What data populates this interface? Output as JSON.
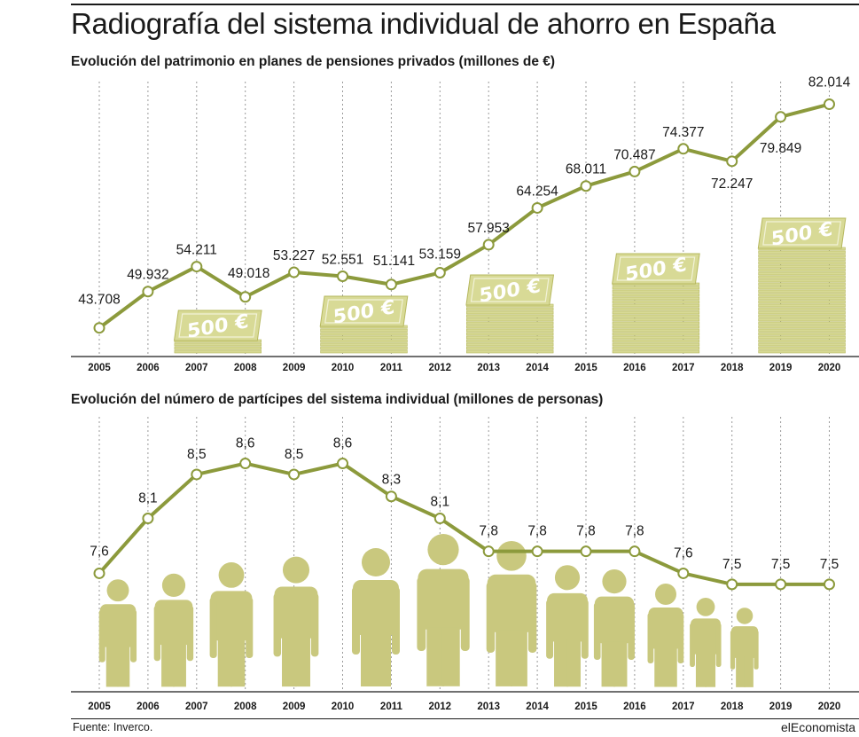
{
  "header": {
    "title": "Radiografía del sistema individual de ahorro en España"
  },
  "footer": {
    "source": "Fuente: Inverco.",
    "brand": "elEconomista"
  },
  "colors": {
    "line": "#8c9a3c",
    "bill": "#d8da96",
    "bill_stroke": "#b6b85e",
    "bill_text": "#ffffff",
    "person": "#c9c87e",
    "gridline": "#9a9a9a",
    "axis": "#1a1a1a"
  },
  "chart_data": [
    {
      "type": "line",
      "title": "Evolución del patrimonio en planes de pensiones privados (millones de €)",
      "x": [
        "2005",
        "2006",
        "2007",
        "2008",
        "2009",
        "2010",
        "2011",
        "2012",
        "2013",
        "2014",
        "2015",
        "2016",
        "2017",
        "2018",
        "2019",
        "2020"
      ],
      "values": [
        43708,
        49932,
        54211,
        49018,
        53227,
        52551,
        51141,
        53159,
        57953,
        64254,
        68011,
        70487,
        74377,
        72247,
        79849,
        82014
      ],
      "value_labels": [
        "43.708",
        "49.932",
        "54.211",
        "49.018",
        "53.227",
        "52.551",
        "51.141",
        "53.159",
        "57.953",
        "64.254",
        "68.011",
        "70.487",
        "74.377",
        "72.247",
        "79.849",
        "82.014"
      ],
      "ylim": [
        38500,
        86500
      ],
      "grid": true,
      "decoration": {
        "bill_label": "500 €",
        "stacks": [
          {
            "from": "2006",
            "to": "2008",
            "bills": 4
          },
          {
            "from": "2009",
            "to": "2011",
            "bills": 8
          },
          {
            "from": "2012",
            "to": "2014",
            "bills": 14
          },
          {
            "from": "2015",
            "to": "2017",
            "bills": 20
          },
          {
            "from": "2018",
            "to": "2020",
            "bills": 30
          }
        ]
      }
    },
    {
      "type": "line",
      "title": "Evolución del número de partícipes del sistema individual (millones de personas)",
      "x": [
        "2005",
        "2006",
        "2007",
        "2008",
        "2009",
        "2010",
        "2011",
        "2012",
        "2013",
        "2014",
        "2015",
        "2016",
        "2017",
        "2018",
        "2019",
        "2020"
      ],
      "values": [
        7.6,
        8.1,
        8.5,
        8.6,
        8.5,
        8.6,
        8.3,
        8.1,
        7.8,
        7.8,
        7.8,
        7.8,
        7.6,
        7.5,
        7.5,
        7.5
      ],
      "value_labels": [
        "7,6",
        "8,1",
        "8,5",
        "8,6",
        "8,5",
        "8,6",
        "8,3",
        "8,1",
        "7,8",
        "7,8",
        "7,8",
        "7,8",
        "7,6",
        "7,5",
        "7,5",
        "7,5"
      ],
      "ylim": [
        6.95,
        9.0
      ],
      "grid": true,
      "decoration": {
        "people": [
          {
            "at": "2005",
            "size": 0.78
          },
          {
            "at": "2006",
            "size": 0.82
          },
          {
            "at": "2007",
            "size": 0.9
          },
          {
            "at": "2008",
            "size": 0.94
          },
          {
            "at": "2009",
            "size": 1.0
          },
          {
            "at": "2010",
            "size": 1.1
          },
          {
            "at": "2011",
            "size": 1.05
          },
          {
            "at": "2012",
            "size": 0.88
          },
          {
            "at": "2013",
            "size": 0.85
          },
          {
            "at": "2014",
            "size": 0.75
          },
          {
            "at": "2015",
            "size": 0.65
          },
          {
            "at": "2016",
            "size": 0.58
          }
        ]
      }
    }
  ]
}
